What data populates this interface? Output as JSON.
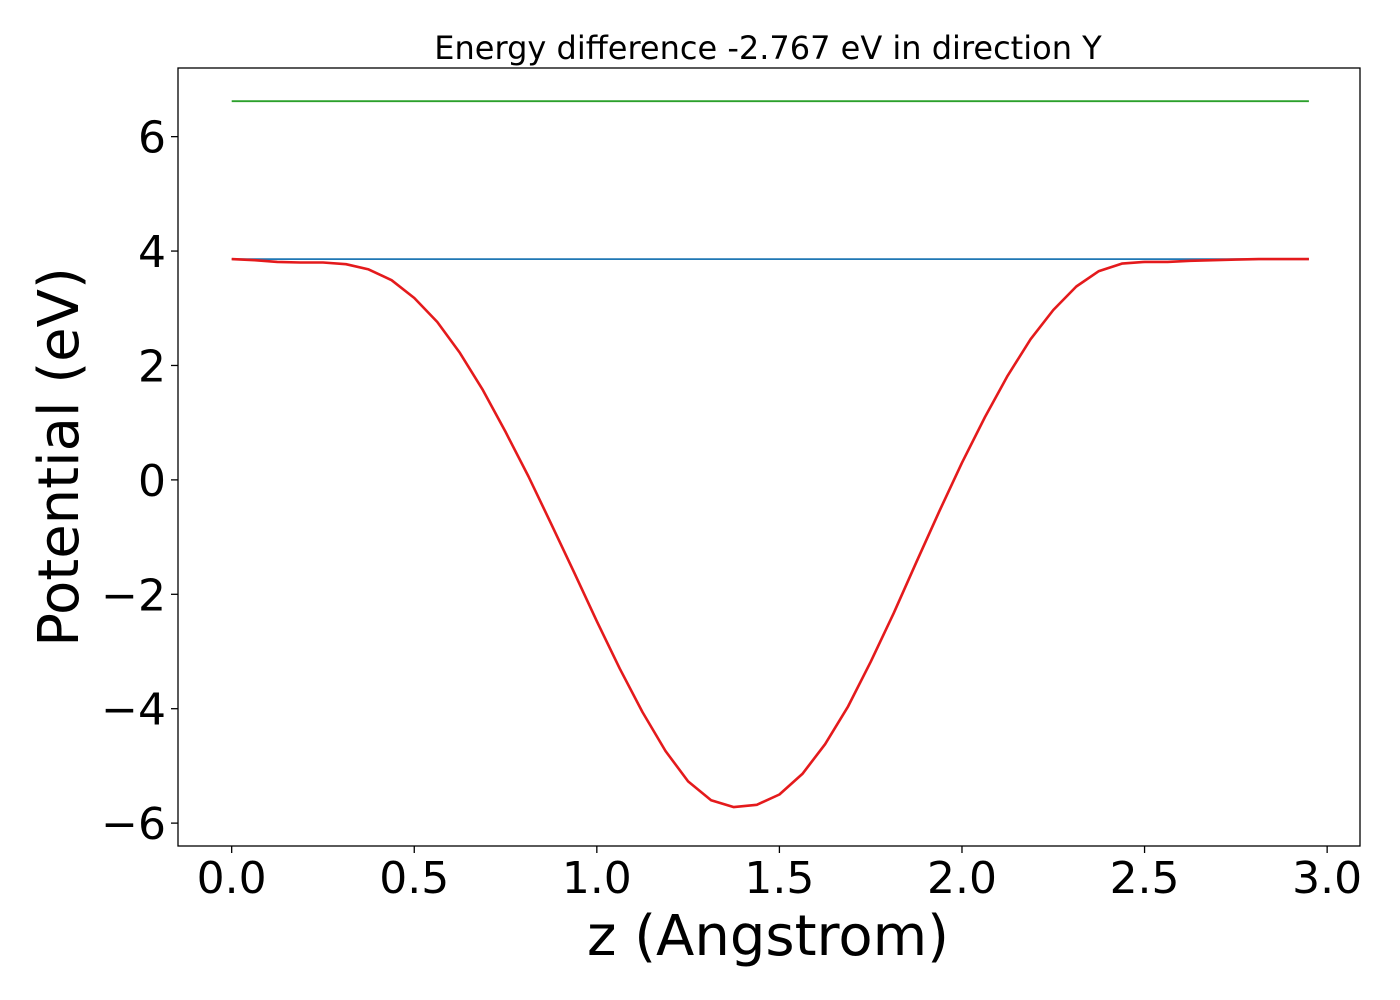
{
  "chart_data": {
    "type": "line",
    "title": "Energy difference -2.767 eV in direction Y",
    "xlabel": "z (Angstrom)",
    "ylabel": "Potential (eV)",
    "xlim": [
      -0.147,
      3.09
    ],
    "ylim": [
      -6.4,
      7.2
    ],
    "xticks": [
      0.0,
      0.5,
      1.0,
      1.5,
      2.0,
      2.5,
      3.0
    ],
    "xtick_labels": [
      "0.0",
      "0.5",
      "1.0",
      "1.5",
      "2.0",
      "2.5",
      "3.0"
    ],
    "yticks": [
      -6,
      -4,
      -2,
      0,
      2,
      4,
      6
    ],
    "ytick_labels": [
      "−6",
      "−4",
      "−2",
      "0",
      "2",
      "4",
      "6"
    ],
    "grid": false,
    "legend": "none",
    "series": [
      {
        "color": "#2ca02c",
        "x": [
          0.0,
          2.95
        ],
        "y": [
          6.62,
          6.62
        ]
      },
      {
        "color": "#1f77b4",
        "x": [
          0.0,
          2.95
        ],
        "y": [
          3.86,
          3.86
        ]
      },
      {
        "color": "#e41a1c",
        "x": [
          0.0,
          0.063,
          0.125,
          0.188,
          0.25,
          0.313,
          0.375,
          0.438,
          0.5,
          0.563,
          0.625,
          0.688,
          0.75,
          0.813,
          0.875,
          0.938,
          1.0,
          1.063,
          1.125,
          1.188,
          1.25,
          1.313,
          1.375,
          1.438,
          1.5,
          1.563,
          1.625,
          1.688,
          1.75,
          1.813,
          1.875,
          1.938,
          2.0,
          2.063,
          2.125,
          2.188,
          2.25,
          2.313,
          2.375,
          2.438,
          2.5,
          2.563,
          2.625,
          2.688,
          2.75,
          2.813,
          2.875,
          2.95
        ],
        "y": [
          3.86,
          3.84,
          3.81,
          3.8,
          3.8,
          3.77,
          3.68,
          3.49,
          3.18,
          2.76,
          2.22,
          1.57,
          0.84,
          0.06,
          -0.77,
          -1.62,
          -2.47,
          -3.3,
          -4.06,
          -4.74,
          -5.27,
          -5.6,
          -5.72,
          -5.68,
          -5.5,
          -5.14,
          -4.62,
          -3.96,
          -3.18,
          -2.33,
          -1.44,
          -0.55,
          0.3,
          1.1,
          1.82,
          2.46,
          2.97,
          3.38,
          3.65,
          3.78,
          3.81,
          3.81,
          3.83,
          3.84,
          3.85,
          3.86,
          3.86,
          3.86
        ]
      }
    ]
  }
}
